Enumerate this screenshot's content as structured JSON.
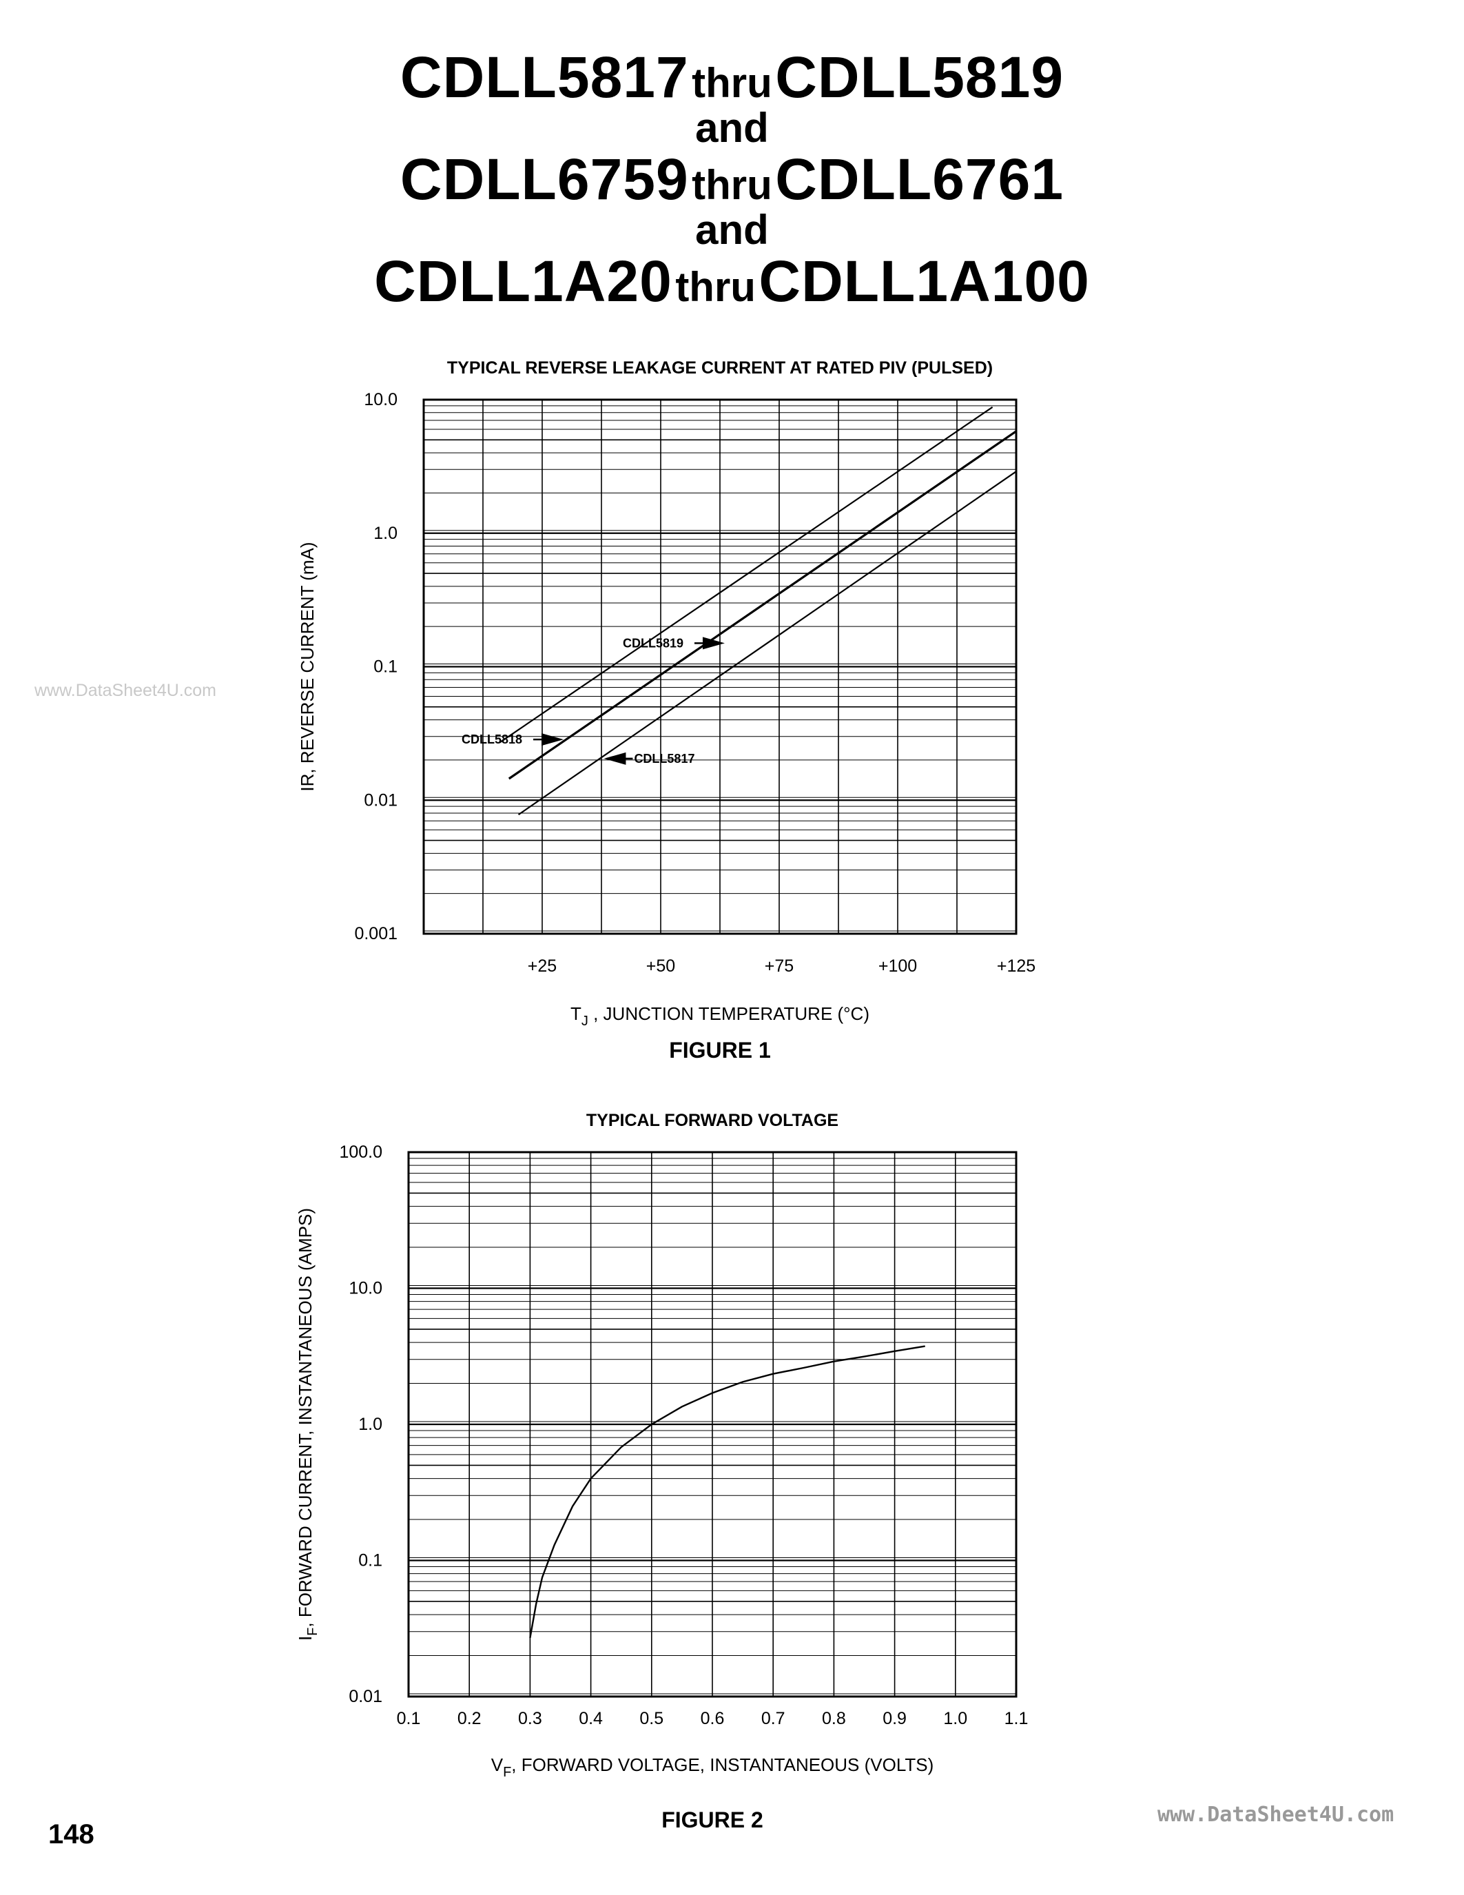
{
  "header": {
    "lines": [
      {
        "left": "CDLL5817",
        "mid": "thru",
        "right": "CDLL5819"
      },
      {
        "and": "and"
      },
      {
        "left": "CDLL6759",
        "mid": "thru",
        "right": "CDLL6761"
      },
      {
        "and": "and"
      },
      {
        "left": "CDLL1A20",
        "mid": "thru",
        "right": "CDLL1A100"
      }
    ]
  },
  "watermarks": {
    "left": "www.DataSheet4U.com",
    "right": "www.DataSheet4U.com"
  },
  "page_number": "148",
  "chart_data": [
    {
      "type": "line",
      "title": "TYPICAL REVERSE LEAKAGE CURRENT AT RATED PIV (PULSED)",
      "xlabel_main": "T",
      "xlabel_sub": "J",
      "xlabel_rest": " , JUNCTION TEMPERATURE (°C)",
      "ylabel": "IR, REVERSE CURRENT (mA)",
      "figure_label": "FIGURE 1",
      "xlim": [
        0,
        125
      ],
      "ylim": [
        0.001,
        10.0
      ],
      "yscale": "log",
      "x_ticks": [
        25,
        50,
        75,
        100,
        125
      ],
      "x_tick_labels": [
        "+25",
        "+50",
        "+75",
        "+100",
        "+125"
      ],
      "y_ticks": [
        0.001,
        0.01,
        0.1,
        1.0,
        10.0
      ],
      "y_tick_labels": [
        "0.001",
        "0.01",
        "0.1",
        "1.0",
        "10.0"
      ],
      "grid": true,
      "series": [
        {
          "name": "CDLL5819",
          "x": [
            16,
            120
          ],
          "y": [
            0.027,
            8.8
          ]
        },
        {
          "name": "CDLL5818",
          "x": [
            18,
            125
          ],
          "y": [
            0.0145,
            5.8
          ]
        },
        {
          "name": "CDLL5817",
          "x": [
            20,
            125
          ],
          "y": [
            0.0078,
            2.9
          ]
        }
      ],
      "annotations": [
        {
          "text": "CDLL5819",
          "x": 42,
          "y": 0.15,
          "arrow": "right"
        },
        {
          "text": "CDLL5818",
          "x": 8,
          "y": 0.0285,
          "arrow": "right"
        },
        {
          "text": "CDLL5817",
          "x": 38,
          "y": 0.0205,
          "arrow": "left"
        }
      ]
    },
    {
      "type": "line",
      "title": "TYPICAL FORWARD VOLTAGE",
      "xlabel_main": "V",
      "xlabel_sub": "F",
      "xlabel_rest": ", FORWARD VOLTAGE, INSTANTANEOUS (VOLTS)",
      "ylabel_main": "I",
      "ylabel_sub": "F",
      "ylabel_rest": ", FORWARD CURRENT, INSTANTANEOUS (AMPS)",
      "figure_label": "FIGURE 2",
      "xlim": [
        0.1,
        1.1
      ],
      "ylim": [
        0.01,
        100.0
      ],
      "yscale": "log",
      "x_ticks": [
        0.1,
        0.2,
        0.3,
        0.4,
        0.5,
        0.6,
        0.7,
        0.8,
        0.9,
        1.0,
        1.1
      ],
      "x_tick_labels": [
        "0.1",
        "0.2",
        "0.3",
        "0.4",
        "0.5",
        "0.6",
        "0.7",
        "0.8",
        "0.9",
        "1.0",
        "1.1"
      ],
      "y_ticks": [
        0.01,
        0.1,
        1.0,
        10.0,
        100.0
      ],
      "y_tick_labels": [
        "0.01",
        "0.1",
        "1.0",
        "10.0",
        "100.0"
      ],
      "grid": true,
      "series": [
        {
          "name": "",
          "x": [
            0.3,
            0.31,
            0.32,
            0.34,
            0.37,
            0.4,
            0.45,
            0.5,
            0.55,
            0.6,
            0.65,
            0.7,
            0.75,
            0.8,
            0.85,
            0.9,
            0.95
          ],
          "y": [
            0.027,
            0.048,
            0.075,
            0.13,
            0.25,
            0.4,
            0.68,
            1.0,
            1.35,
            1.7,
            2.05,
            2.35,
            2.6,
            2.9,
            3.15,
            3.45,
            3.75
          ]
        }
      ]
    }
  ]
}
